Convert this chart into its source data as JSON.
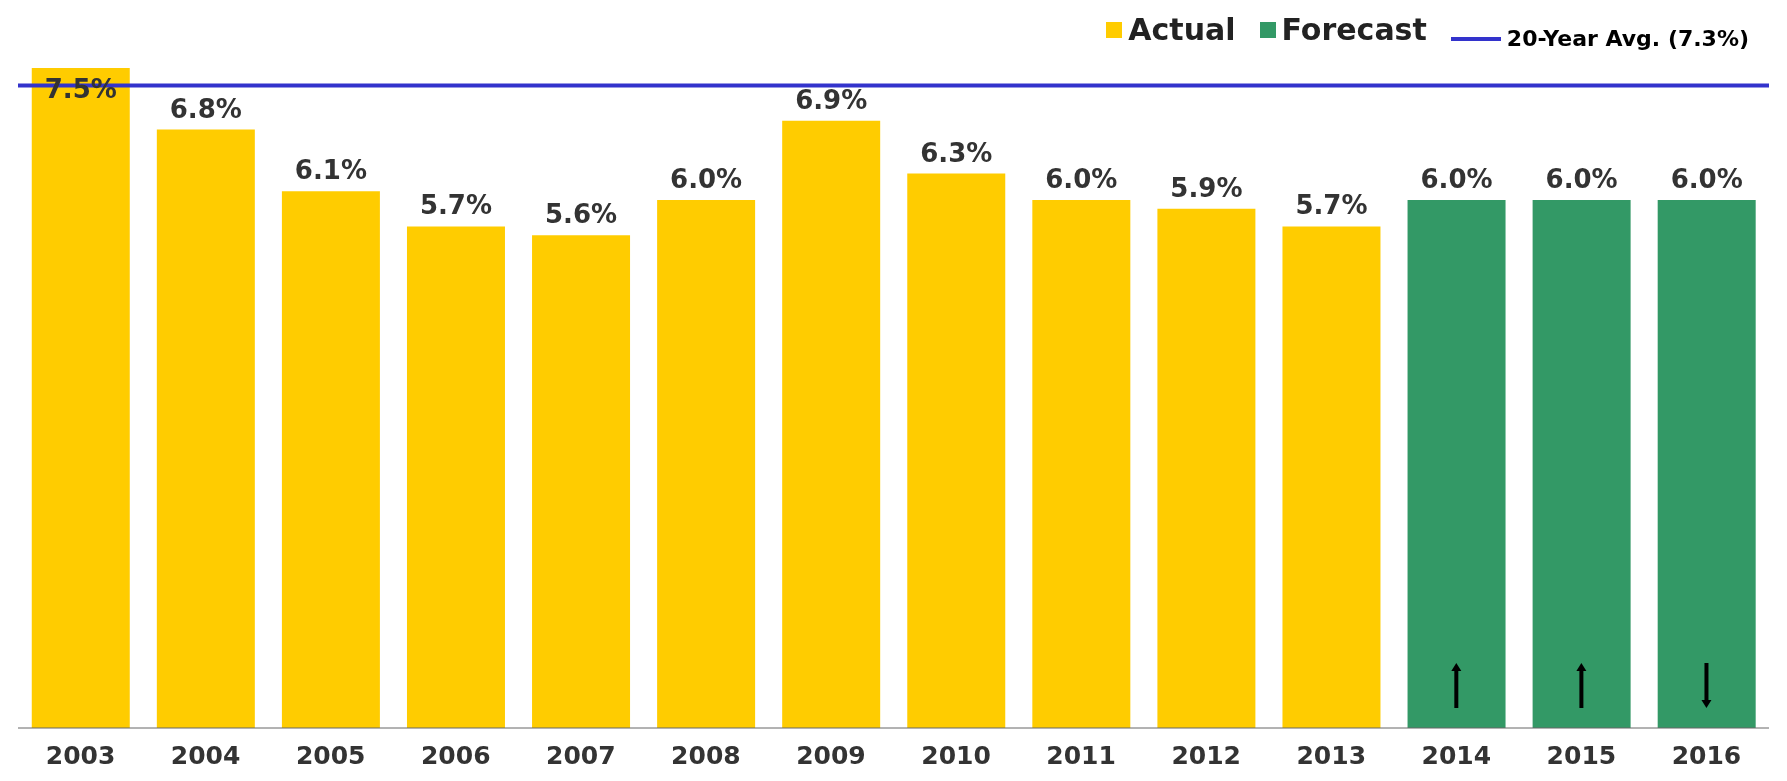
{
  "chart_data": {
    "type": "bar",
    "categories": [
      "2003",
      "2004",
      "2005",
      "2006",
      "2007",
      "2008",
      "2009",
      "2010",
      "2011",
      "2012",
      "2013",
      "2014",
      "2015",
      "2016"
    ],
    "series": [
      {
        "name": "Actual",
        "color": "#ffcc00",
        "values": [
          7.5,
          6.8,
          6.1,
          5.7,
          5.6,
          6.0,
          6.9,
          6.3,
          6.0,
          5.9,
          5.7,
          null,
          null,
          null
        ],
        "value_labels": [
          "7.5%",
          "6.8%",
          "6.1%",
          "5.7%",
          "5.6%",
          "6.0%",
          "6.9%",
          "6.3%",
          "6.0%",
          "5.9%",
          "5.7%",
          null,
          null,
          null
        ]
      },
      {
        "name": "Forecast",
        "color": "#339966",
        "values": [
          null,
          null,
          null,
          null,
          null,
          null,
          null,
          null,
          null,
          null,
          null,
          6.0,
          6.0,
          6.0
        ],
        "value_labels": [
          null,
          null,
          null,
          null,
          null,
          null,
          null,
          null,
          null,
          null,
          null,
          "6.0%",
          "6.0%",
          "6.0%"
        ]
      }
    ],
    "stacked": true,
    "ref_lines": [
      {
        "axis": "y",
        "value": 7.3,
        "label": "20-Year Avg. (7.3%)",
        "color": "#3333cc"
      }
    ],
    "legend": "top right",
    "grid": false,
    "tick_labels": "x"
  }
}
